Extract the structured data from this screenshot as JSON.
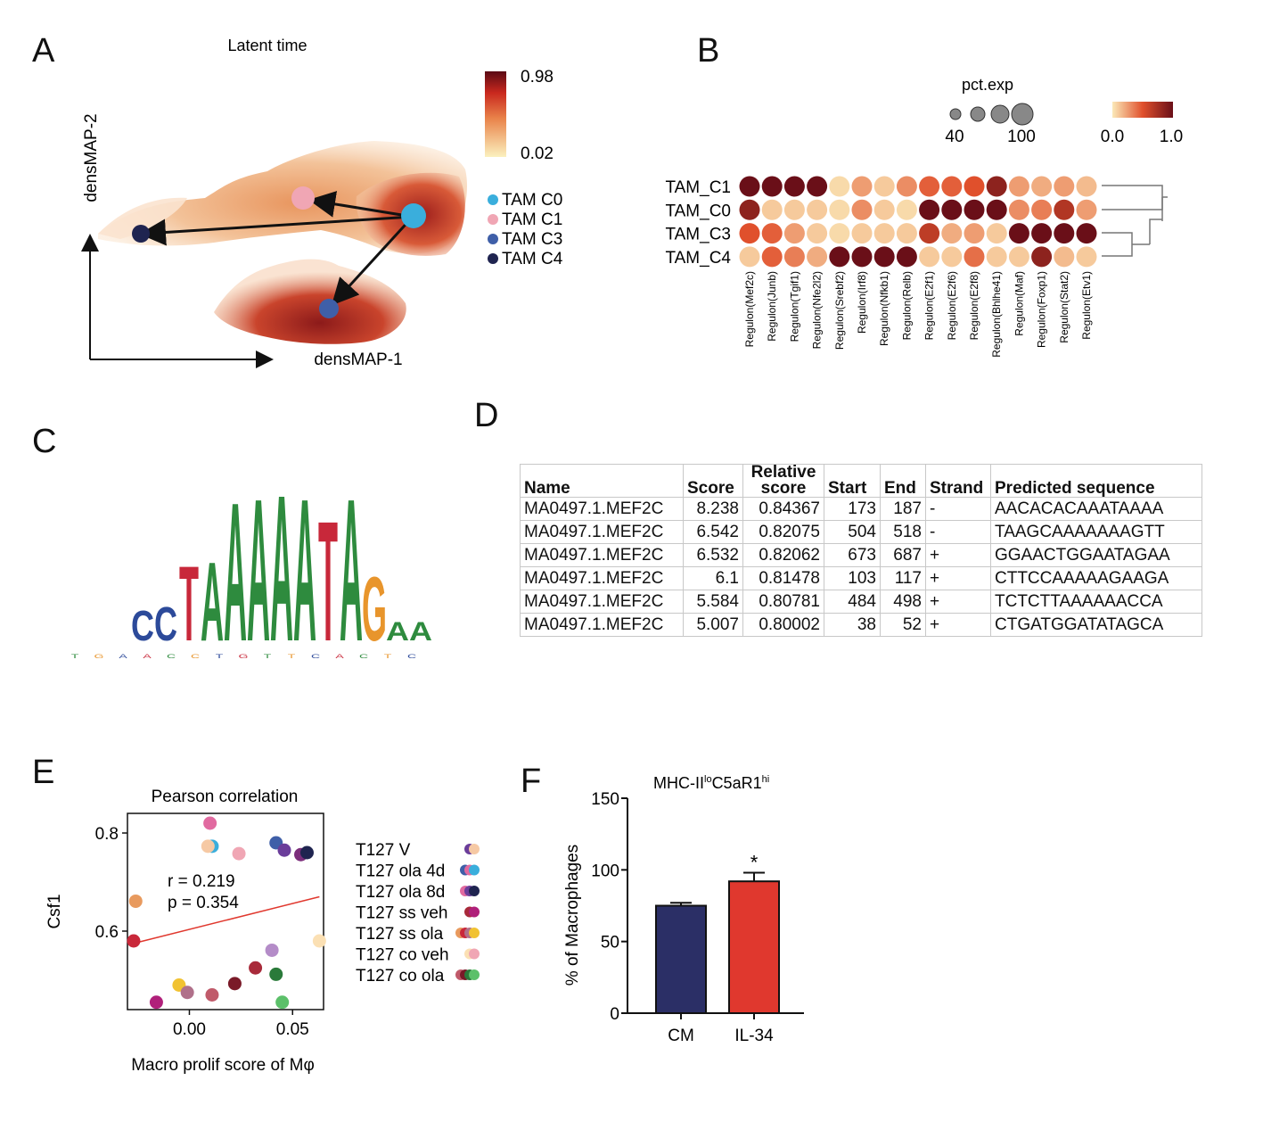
{
  "panels": {
    "A": "A",
    "B": "B",
    "C": "C",
    "D": "D",
    "E": "E",
    "F": "F"
  },
  "colors": {
    "tam_c0": "#3aaedc",
    "tam_c1": "#f0a6b4",
    "tam_c3": "#3f5fa8",
    "tam_c4": "#1f2450",
    "heat_low": "#fbe9b8",
    "heat_mid": "#e0502c",
    "heat_high": "#6a0f18",
    "bar_cm": "#2b2f66",
    "bar_il34": "#e0382e",
    "trend_line": "#e0382e"
  },
  "panel_a": {
    "title": "Latent time",
    "xlabel": "densMAP-1",
    "ylabel": "densMAP-2",
    "colorbar": {
      "max": "0.98",
      "min": "0.02"
    },
    "legend": [
      {
        "label": "TAM C0",
        "color": "#3aaedc"
      },
      {
        "label": "TAM C1",
        "color": "#f0a6b4"
      },
      {
        "label": "TAM C3",
        "color": "#3f5fa8"
      },
      {
        "label": "TAM C4",
        "color": "#1f2450"
      }
    ]
  },
  "panel_b": {
    "size_title": "pct.exp",
    "size_labels": [
      "40",
      "100"
    ],
    "color_labels": [
      "0.0",
      "1.0"
    ],
    "rows": [
      "TAM_C1",
      "TAM_C0",
      "TAM_C3",
      "TAM_C4"
    ],
    "columns": [
      "Regulon(Mef2c)",
      "Regulon(Junb)",
      "Regulon(Tgif1)",
      "Regulon(Nfe2l2)",
      "Regulon(Srebf2)",
      "Regulon(Irf8)",
      "Regulon(Nfkb1)",
      "Regulon(Relb)",
      "Regulon(E2f1)",
      "Regulon(E2f6)",
      "Regulon(E2f8)",
      "Regulon(Bhlhe41)",
      "Regulon(Maf)",
      "Regulon(Foxp1)",
      "Regulon(Stat2)",
      "Regulon(Etv1)"
    ]
  },
  "chart_data": [
    {
      "type": "heatmap",
      "panel": "B",
      "rows": [
        "TAM_C1",
        "TAM_C0",
        "TAM_C3",
        "TAM_C4"
      ],
      "columns": [
        "Regulon(Mef2c)",
        "Regulon(Junb)",
        "Regulon(Tgif1)",
        "Regulon(Nfe2l2)",
        "Regulon(Srebf2)",
        "Regulon(Irf8)",
        "Regulon(Nfkb1)",
        "Regulon(Relb)",
        "Regulon(E2f1)",
        "Regulon(E2f6)",
        "Regulon(E2f8)",
        "Regulon(Bhlhe41)",
        "Regulon(Maf)",
        "Regulon(Foxp1)",
        "Regulon(Stat2)",
        "Regulon(Etv1)"
      ],
      "values": [
        [
          1.0,
          1.0,
          1.0,
          1.0,
          0.05,
          0.25,
          0.1,
          0.3,
          0.45,
          0.45,
          0.5,
          0.85,
          0.25,
          0.2,
          0.25,
          0.15
        ],
        [
          0.85,
          0.1,
          0.1,
          0.1,
          0.05,
          0.3,
          0.1,
          0.05,
          1.0,
          1.0,
          1.0,
          1.0,
          0.3,
          0.35,
          0.7,
          0.25
        ],
        [
          0.5,
          0.45,
          0.25,
          0.1,
          0.05,
          0.1,
          0.1,
          0.1,
          0.65,
          0.2,
          0.25,
          0.1,
          1.0,
          1.0,
          1.0,
          1.0
        ],
        [
          0.1,
          0.45,
          0.35,
          0.2,
          1.0,
          1.0,
          1.0,
          1.0,
          0.1,
          0.1,
          0.4,
          0.1,
          0.1,
          0.85,
          0.15,
          0.1
        ]
      ],
      "color_range": [
        0.0,
        1.0
      ]
    },
    {
      "type": "scatter",
      "panel": "E",
      "title": "Pearson correlation",
      "xlabel": "Macro prolif score of Mφ",
      "ylabel": "Csf1",
      "xlim": [
        -0.03,
        0.065
      ],
      "ylim": [
        0.44,
        0.84
      ],
      "xticks": [
        "0.00",
        "0.05"
      ],
      "yticks": [
        "0.6",
        "0.8"
      ],
      "annotation_r": "r = 0.219",
      "annotation_p": "p = 0.354",
      "trend": {
        "x": [
          -0.027,
          0.063
        ],
        "y": [
          0.575,
          0.67
        ]
      },
      "points": [
        {
          "x": 0.01,
          "y": 0.82,
          "color": "#e16aa0"
        },
        {
          "x": 0.011,
          "y": 0.773,
          "color": "#3aaedc"
        },
        {
          "x": 0.009,
          "y": 0.773,
          "color": "#f6c9a4"
        },
        {
          "x": 0.024,
          "y": 0.758,
          "color": "#f0a6b4"
        },
        {
          "x": 0.042,
          "y": 0.78,
          "color": "#3f5fa8"
        },
        {
          "x": 0.046,
          "y": 0.765,
          "color": "#6a3d9a"
        },
        {
          "x": 0.054,
          "y": 0.756,
          "color": "#7b2d7b"
        },
        {
          "x": 0.057,
          "y": 0.76,
          "color": "#1f2450"
        },
        {
          "x": -0.026,
          "y": 0.661,
          "color": "#e89a5e"
        },
        {
          "x": -0.027,
          "y": 0.58,
          "color": "#c9283a"
        },
        {
          "x": 0.063,
          "y": 0.58,
          "color": "#fbe0b4"
        },
        {
          "x": 0.04,
          "y": 0.561,
          "color": "#b48cc8"
        },
        {
          "x": 0.032,
          "y": 0.525,
          "color": "#a82a3a"
        },
        {
          "x": 0.042,
          "y": 0.512,
          "color": "#2a7a3a"
        },
        {
          "x": 0.022,
          "y": 0.493,
          "color": "#7a1a28"
        },
        {
          "x": -0.005,
          "y": 0.49,
          "color": "#f1c232"
        },
        {
          "x": -0.001,
          "y": 0.475,
          "color": "#b0708a"
        },
        {
          "x": 0.011,
          "y": 0.47,
          "color": "#c05a6a"
        },
        {
          "x": -0.016,
          "y": 0.455,
          "color": "#b0207a"
        },
        {
          "x": 0.045,
          "y": 0.455,
          "color": "#5cc06a"
        }
      ],
      "legend": [
        {
          "label": "T127 V",
          "colors": [
            "#6a3d9a",
            "#f6c9a4"
          ]
        },
        {
          "label": "T127 ola 4d",
          "colors": [
            "#3f5fa8",
            "#e16aa0",
            "#3aaedc"
          ]
        },
        {
          "label": "T127 ola 8d",
          "colors": [
            "#e16aa0",
            "#6a3d9a",
            "#1f2450"
          ]
        },
        {
          "label": "T127 ss veh",
          "colors": [
            "#a82a3a",
            "#b0207a"
          ]
        },
        {
          "label": "T127 ss ola",
          "colors": [
            "#e89a5e",
            "#c9283a",
            "#b0708a",
            "#f1c232"
          ]
        },
        {
          "label": "T127 co veh",
          "colors": [
            "#fbe0b4",
            "#f0a6b4"
          ]
        },
        {
          "label": "T127 co ola",
          "colors": [
            "#c05a6a",
            "#7a1a28",
            "#2a7a3a",
            "#5cc06a"
          ]
        }
      ]
    },
    {
      "type": "bar",
      "panel": "F",
      "title_main": "MHC-II",
      "title_sup1": "lo",
      "title_mid": "C5aR1",
      "title_sup2": "hi",
      "ylabel": "% of Macrophages",
      "categories": [
        "CM",
        "IL-34"
      ],
      "values": [
        75,
        92
      ],
      "errors": [
        2,
        6
      ],
      "ylim": [
        0,
        150
      ],
      "yticks": [
        "0",
        "50",
        "100",
        "150"
      ],
      "significance": "*",
      "colors": [
        "#2b2f66",
        "#e0382e"
      ]
    }
  ],
  "panel_d": {
    "headers": [
      "Name",
      "Score",
      "Relative score",
      "Start",
      "End",
      "Strand",
      "Predicted sequence"
    ],
    "header_relative_1": "Relative",
    "header_relative_2": "score",
    "rows": [
      [
        "MA0497.1.MEF2C",
        "8.238",
        "0.84367",
        "173",
        "187",
        "-",
        "AACACACAAATAAAA"
      ],
      [
        "MA0497.1.MEF2C",
        "6.542",
        "0.82075",
        "504",
        "518",
        "-",
        "TAAGCAAAAAAAGTT"
      ],
      [
        "MA0497.1.MEF2C",
        "6.532",
        "0.82062",
        "673",
        "687",
        "+",
        "GGAACTGGAATAGAA"
      ],
      [
        "MA0497.1.MEF2C",
        "6.1",
        "0.81478",
        "103",
        "117",
        "+",
        "CTTCCAAAAAGAAGA"
      ],
      [
        "MA0497.1.MEF2C",
        "5.584",
        "0.80781",
        "484",
        "498",
        "+",
        "TCTCTTAAAAAACCA"
      ],
      [
        "MA0497.1.MEF2C",
        "5.007",
        "0.80002",
        "38",
        "52",
        "+",
        "CTGATGGATATAGCA"
      ]
    ]
  },
  "panel_c": {
    "motif": [
      {
        "letter": "C",
        "color": "#2c4a9a"
      },
      {
        "letter": "C",
        "color": "#2c4a9a"
      },
      {
        "letter": "T",
        "color": "#c8283a"
      },
      {
        "letter": "A",
        "color": "#2e8b3e"
      },
      {
        "letter": "A",
        "color": "#2e8b3e"
      },
      {
        "letter": "A",
        "color": "#2e8b3e"
      },
      {
        "letter": "A",
        "color": "#2e8b3e"
      },
      {
        "letter": "A",
        "color": "#2e8b3e"
      },
      {
        "letter": "T",
        "color": "#c8283a"
      },
      {
        "letter": "A",
        "color": "#2e8b3e"
      },
      {
        "letter": "G",
        "color": "#e8952c"
      },
      {
        "letter": "A",
        "color": "#2e8b3e"
      },
      {
        "letter": "A",
        "color": "#2e8b3e"
      }
    ]
  }
}
